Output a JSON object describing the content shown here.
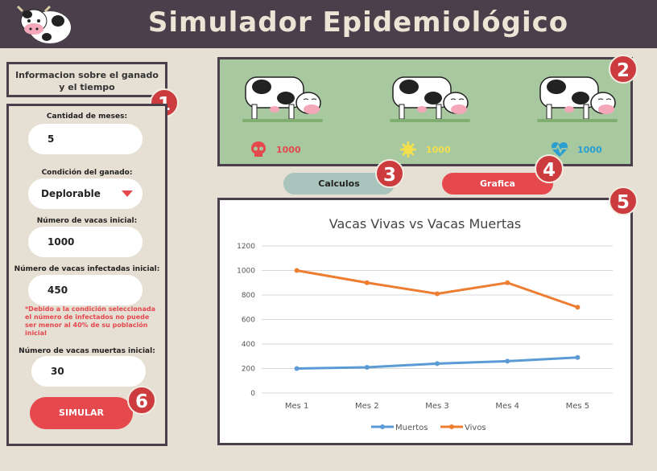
{
  "header": {
    "title": "Simulador Epidemiológico",
    "logo_icon": "cow-logo-icon"
  },
  "info": {
    "line1": "Informacion sobre el ganado",
    "line2": "y el tiempo"
  },
  "form": {
    "months_label": "Cantidad de meses:",
    "months_value": "5",
    "condition_label": "Condición del ganado:",
    "condition_value": "Deplorable",
    "initial_label": "Número de vacas inicial:",
    "initial_value": "1000",
    "infected_label": "Número de vacas infectadas inicial:",
    "infected_value": "450",
    "warning": "*Debido a la condición seleccionada el número de infectados no puede ser menor al 40% de su población inicial",
    "dead_label": "Número de vacas muertas inicial:",
    "dead_value": "30",
    "simulate_label": "SIMULAR"
  },
  "badges": [
    "1",
    "2",
    "3",
    "4",
    "5",
    "6"
  ],
  "stats": {
    "dead": {
      "icon": "skull-icon",
      "value": "1000",
      "color": "#e5484d"
    },
    "infected": {
      "icon": "virus-icon",
      "value": "1000",
      "color": "#f4e04d"
    },
    "healthy": {
      "icon": "heartbeat-icon",
      "value": "1000",
      "color": "#2a9fd0"
    }
  },
  "buttons": {
    "calculos": "Calculos",
    "grafica": "Grafica"
  },
  "chart_data": {
    "type": "line",
    "title": "Vacas Vivas vs Vacas Muertas",
    "categories": [
      "Mes 1",
      "Mes 2",
      "Mes 3",
      "Mes 4",
      "Mes 5"
    ],
    "ylim": [
      0,
      1200
    ],
    "yticks": [
      "0",
      "200",
      "400",
      "600",
      "800",
      "1000",
      "1200"
    ],
    "grid": true,
    "legend": "bottom",
    "series": [
      {
        "name": "Muertos",
        "color": "#5b9bd5",
        "values": [
          200,
          210,
          240,
          260,
          290
        ]
      },
      {
        "name": "Vivos",
        "color": "#ed7d31",
        "values": [
          1000,
          900,
          810,
          900,
          700
        ]
      }
    ]
  }
}
